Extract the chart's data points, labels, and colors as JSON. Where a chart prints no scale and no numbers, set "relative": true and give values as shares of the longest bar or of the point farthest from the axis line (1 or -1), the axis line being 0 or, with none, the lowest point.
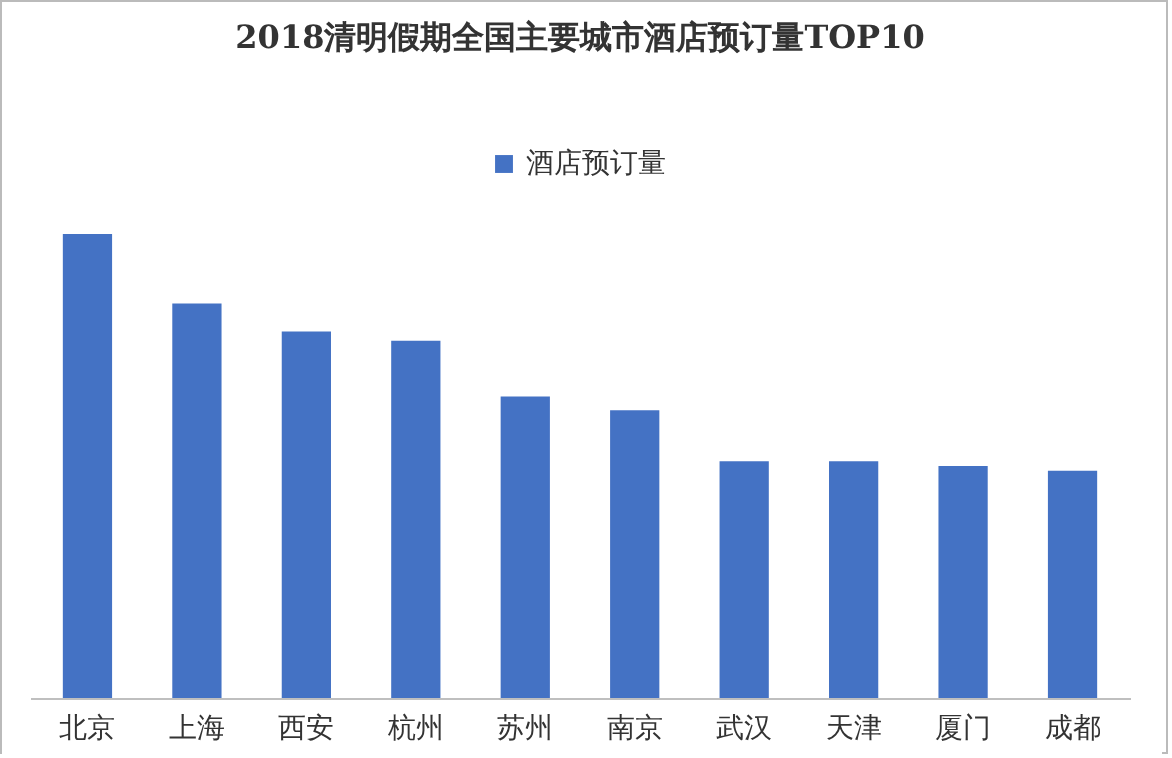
{
  "chart_data": {
    "type": "bar",
    "title": "2018清明假期全国主要城市酒店预订量TOP10",
    "categories": [
      "北京",
      "上海",
      "西安",
      "杭州",
      "苏州",
      "南京",
      "武汉",
      "天津",
      "厦门",
      "成都"
    ],
    "series": [
      {
        "name": "酒店预订量",
        "color": "#4472c4",
        "values": [
          1,
          0.85,
          0.79,
          0.77,
          0.65,
          0.62,
          0.51,
          0.51,
          0.5,
          0.49
        ]
      }
    ],
    "relative": true,
    "legend": "top"
  }
}
